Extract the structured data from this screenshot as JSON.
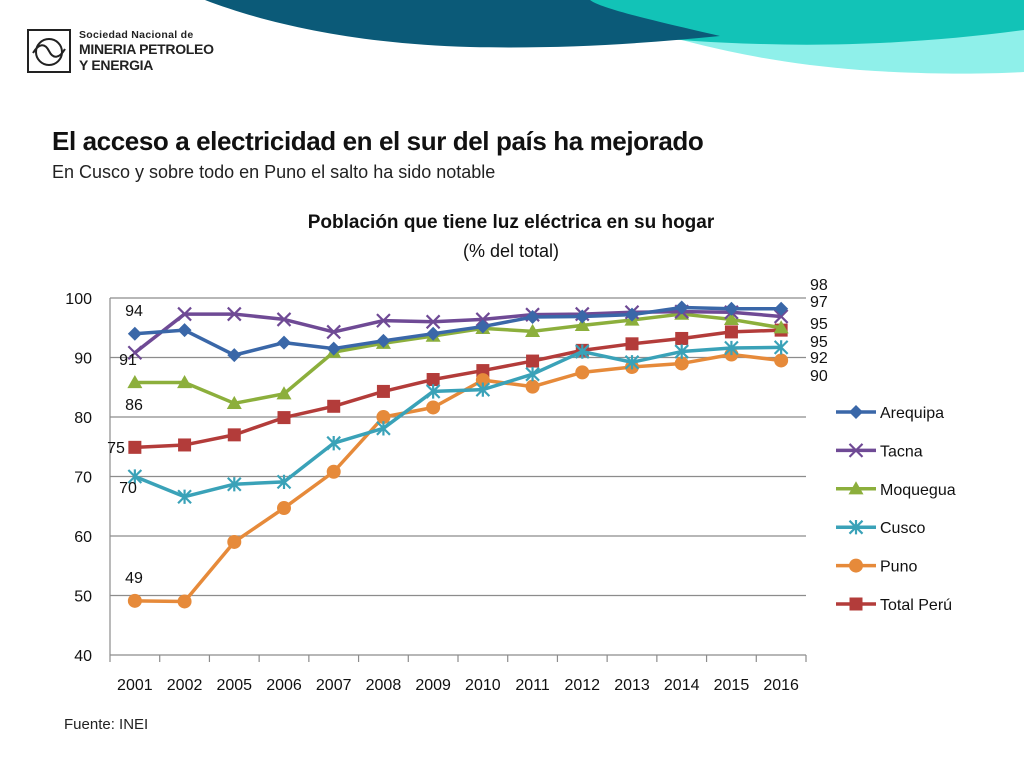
{
  "logo": {
    "line1": "Sociedad Nacional de",
    "line2": "MINERIA PETROLEO",
    "line3": "Y ENERGIA"
  },
  "heading": {
    "title": "El acceso a electricidad en el sur del país ha mejorado",
    "subtitle": "En Cusco y sobre todo en Puno el salto ha sido notable"
  },
  "footer": {
    "source": "Fuente: INEI"
  },
  "colors": {
    "banner_dark": "#0b5a78",
    "banner_teal": "#12c3b7",
    "banner_light": "#8ff0ea"
  },
  "chart_data": {
    "type": "line",
    "title": "Población que tiene luz eléctrica en su hogar",
    "subtitle": "(% del total)",
    "xlabel": "",
    "ylabel": "",
    "ylim": [
      40,
      100
    ],
    "yticks": [
      40,
      50,
      60,
      70,
      80,
      90,
      100
    ],
    "grid": true,
    "legend_position": "right",
    "categories": [
      "2001",
      "2002",
      "2005",
      "2006",
      "2007",
      "2008",
      "2009",
      "2010",
      "2011",
      "2012",
      "2013",
      "2014",
      "2015",
      "2016"
    ],
    "series": [
      {
        "name": "Arequipa",
        "color": "#3a67a8",
        "marker": "diamond",
        "values": [
          94.0,
          94.6,
          90.4,
          92.5,
          91.5,
          92.8,
          94.0,
          95.2,
          96.8,
          96.9,
          97.2,
          98.4,
          98.2,
          98.2
        ]
      },
      {
        "name": "Tacna",
        "color": "#6f4a95",
        "marker": "x",
        "values": [
          90.8,
          97.3,
          97.3,
          96.4,
          94.3,
          96.2,
          96.0,
          96.4,
          97.2,
          97.3,
          97.6,
          97.7,
          97.6,
          96.9
        ]
      },
      {
        "name": "Moquegua",
        "color": "#8caf3c",
        "marker": "triangle",
        "values": [
          85.8,
          85.8,
          82.3,
          83.9,
          90.9,
          92.4,
          93.6,
          94.9,
          94.4,
          95.4,
          96.3,
          97.3,
          96.4,
          95.0
        ]
      },
      {
        "name": "Cusco",
        "color": "#3aa2b8",
        "marker": "star",
        "values": [
          70.0,
          66.6,
          68.7,
          69.1,
          75.6,
          78.1,
          84.3,
          84.6,
          87.2,
          91.0,
          89.2,
          91.0,
          91.6,
          91.7
        ]
      },
      {
        "name": "Puno",
        "color": "#e68a3a",
        "marker": "circle",
        "values": [
          49.1,
          49.0,
          59.0,
          64.7,
          70.8,
          80.0,
          81.6,
          86.2,
          85.1,
          87.5,
          88.4,
          89.0,
          90.5,
          89.5
        ]
      },
      {
        "name": "Total Perú",
        "color": "#b33c3a",
        "marker": "square",
        "values": [
          74.9,
          75.3,
          77.0,
          79.9,
          81.8,
          84.3,
          86.3,
          87.8,
          89.4,
          91.2,
          92.3,
          93.2,
          94.3,
          94.6
        ]
      }
    ],
    "annotations": {
      "start": [
        "94",
        "91",
        "86",
        "75",
        "70",
        "49"
      ],
      "end": [
        "98",
        "97",
        "95",
        "95",
        "92",
        "90"
      ]
    }
  }
}
